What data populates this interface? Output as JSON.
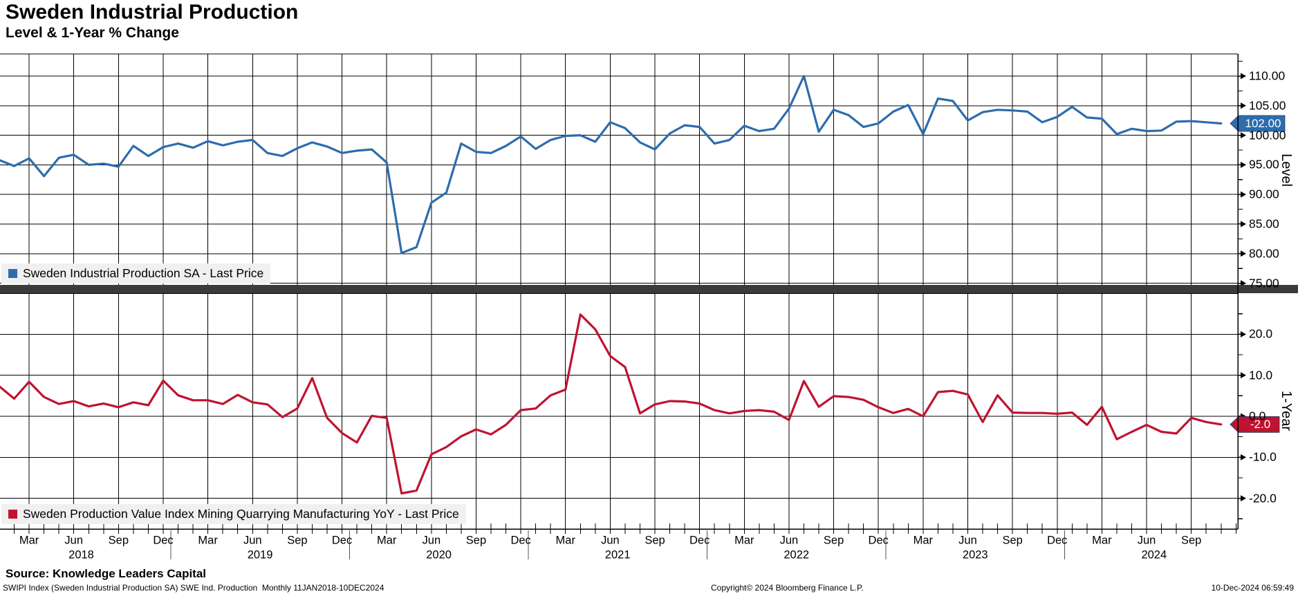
{
  "header": {
    "title": "Sweden Industrial Production",
    "subtitle": "Level & 1-Year % Change"
  },
  "x_axis": {
    "month_tick_labels": [
      "Mar",
      "Jun",
      "Sep",
      "Dec"
    ],
    "years": [
      "2018",
      "2019",
      "2020",
      "2021",
      "2022",
      "2023",
      "2024"
    ]
  },
  "footer": {
    "source": "Source: Knowledge Leaders Capital",
    "description": "SWIPI Index (Sweden Industrial Production SA) SWE Ind. Production  Monthly 11JAN2018-10DEC2024",
    "copyright": "Copyright© 2024 Bloomberg Finance L.P.",
    "timestamp": "10-Dec-2024 06:59:49"
  },
  "colors": {
    "level_line": "#2d6cad",
    "level_badge": "#2d6cad",
    "yoy_line": "#c0132f",
    "yoy_badge": "#c0132f",
    "separator": "#3b3b3b",
    "grid": "#000000",
    "legend_bg": "#f0f0f0",
    "badge_text": "#ffffff"
  },
  "chart_data": [
    {
      "type": "line",
      "panel": "top",
      "axis_title": "Level",
      "x_start": "2018-01",
      "x_end": "2024-11",
      "frequency": "monthly",
      "grid": true,
      "legend_position": "bottom-left",
      "ylim": [
        74.6,
        113.74
      ],
      "yticks": [
        110,
        105,
        100,
        95,
        90,
        85,
        80,
        75
      ],
      "ytick_labels": [
        "110.00",
        "105.00",
        "100.00",
        "95.00",
        "90.00",
        "85.00",
        "80.00",
        "75.00"
      ],
      "minor_tick_step": 2.5,
      "last_value": 102.0,
      "last_value_label": "102.00",
      "series": [
        {
          "name": "Sweden Industrial Production SA - Last Price",
          "color": "#2d6cad",
          "values": [
            95.8,
            94.8,
            96.1,
            93.1,
            96.2,
            96.7,
            95.0,
            95.2,
            94.7,
            98.2,
            96.5,
            98.0,
            98.6,
            97.9,
            99.0,
            98.3,
            98.9,
            99.2,
            97.0,
            96.5,
            97.8,
            98.8,
            98.1,
            97.0,
            97.4,
            97.6,
            95.4,
            80.1,
            81.1,
            88.6,
            90.3,
            98.6,
            97.2,
            97.0,
            98.2,
            99.8,
            97.7,
            99.2,
            99.9,
            100.0,
            98.9,
            102.2,
            101.2,
            98.8,
            97.6,
            100.3,
            101.7,
            101.4,
            98.6,
            99.2,
            101.6,
            100.7,
            101.1,
            104.5,
            110.0,
            100.6,
            104.3,
            103.4,
            101.4,
            102.0,
            104.0,
            105.1,
            100.2,
            106.2,
            105.8,
            102.5,
            103.9,
            104.3,
            104.2,
            104.0,
            102.2,
            103.1,
            104.8,
            103.0,
            102.8,
            100.2,
            101.1,
            100.7,
            100.8,
            102.3,
            102.4,
            102.2,
            102.0
          ]
        }
      ]
    },
    {
      "type": "line",
      "panel": "bottom",
      "axis_title": "1-Year",
      "x_start": "2018-01",
      "x_end": "2024-11",
      "frequency": "monthly",
      "grid": true,
      "legend_position": "bottom-left",
      "ylim": [
        -27.48,
        30.0
      ],
      "yticks": [
        20,
        10,
        0,
        -10,
        -20
      ],
      "ytick_labels": [
        "20.0",
        "10.0",
        "0.0",
        "-10.0",
        "-20.0"
      ],
      "minor_tick_step": 5,
      "last_value": -2.0,
      "last_value_label": "-2.0",
      "series": [
        {
          "name": "Sweden Production Value Index Mining Quarrying Manufacturing YoY - Last Price",
          "color": "#c0132f",
          "values": [
            7.3,
            4.3,
            8.4,
            4.7,
            3.0,
            3.7,
            2.4,
            3.1,
            2.2,
            3.4,
            2.7,
            8.7,
            5.1,
            3.9,
            3.9,
            3.0,
            5.2,
            3.4,
            2.9,
            -0.2,
            1.9,
            9.3,
            -0.4,
            -4.1,
            -6.4,
            0.1,
            -0.4,
            -18.8,
            -18.1,
            -9.3,
            -7.5,
            -4.9,
            -3.2,
            -4.4,
            -2.1,
            1.5,
            1.9,
            5.1,
            6.5,
            24.8,
            21.2,
            14.7,
            12.0,
            0.7,
            2.9,
            3.7,
            3.6,
            3.1,
            1.5,
            0.7,
            1.3,
            1.5,
            1.1,
            -0.9,
            8.6,
            2.3,
            4.9,
            4.7,
            4.0,
            2.2,
            0.8,
            1.8,
            0.0,
            5.9,
            6.2,
            5.3,
            -1.4,
            5.1,
            0.9,
            0.8,
            0.8,
            0.6,
            0.9,
            -2.1,
            2.3,
            -5.6,
            -3.8,
            -2.1,
            -3.8,
            -4.2,
            -0.4,
            -1.4,
            -2.0
          ]
        }
      ]
    }
  ]
}
